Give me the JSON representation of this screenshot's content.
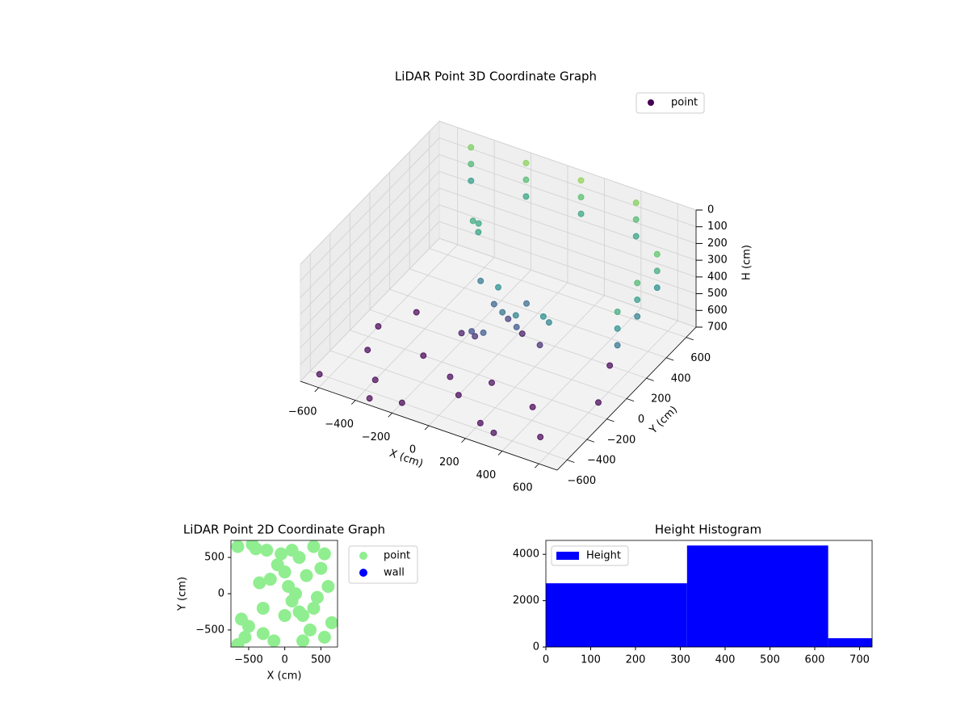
{
  "chart_data": [
    {
      "type": "scatter3d",
      "title": "LiDAR Point 3D Coordinate Graph",
      "xlabel": "X (cm)",
      "ylabel": "Y (cm)",
      "zlabel": "H (cm)",
      "xlim": [
        -700,
        700
      ],
      "ylim": [
        -700,
        700
      ],
      "zlim": [
        700,
        0
      ],
      "xticks": [
        {
          "value": -600,
          "label": "−600"
        },
        {
          "value": -400,
          "label": "−400"
        },
        {
          "value": -200,
          "label": "−200"
        },
        0,
        200,
        400,
        600
      ],
      "yticks": [
        {
          "value": -600,
          "label": "−600"
        },
        {
          "value": -400,
          "label": "−400"
        },
        {
          "value": -200,
          "label": "−200"
        },
        0,
        200,
        400,
        600
      ],
      "zticks": [
        0,
        100,
        200,
        300,
        400,
        500,
        600,
        700
      ],
      "grid": true,
      "legend": "upper right",
      "cmap": "viridis",
      "series": [
        {
          "name": "point",
          "color": "#440154",
          "x": [
            -500,
            -500,
            -500,
            -200,
            -200,
            -200,
            100,
            100,
            100,
            400,
            400,
            400,
            650,
            650,
            650,
            650,
            650,
            650,
            650,
            650,
            650,
            0,
            50,
            -50,
            100,
            0,
            -100,
            50,
            150,
            -150,
            0,
            100,
            -80,
            200,
            -200,
            -300,
            -280,
            -260,
            300,
            320,
            -650,
            -550,
            -400,
            -300,
            -500,
            -200,
            0,
            200,
            350,
            500,
            600,
            500,
            300,
            -100,
            100,
            -600,
            -350
          ],
          "y": [
            650,
            650,
            650,
            650,
            650,
            650,
            650,
            650,
            650,
            650,
            650,
            650,
            400,
            400,
            400,
            200,
            200,
            200,
            0,
            0,
            0,
            0,
            -50,
            50,
            0,
            100,
            -50,
            150,
            -100,
            100,
            -150,
            100,
            -120,
            50,
            0,
            300,
            320,
            280,
            -100,
            -80,
            -600,
            -300,
            -500,
            -200,
            100,
            -600,
            -400,
            -550,
            -300,
            -500,
            -100,
            200,
            -600,
            -300,
            -250,
            -100,
            -650
          ],
          "z": [
            50,
            150,
            250,
            30,
            130,
            230,
            20,
            120,
            220,
            40,
            140,
            240,
            100,
            200,
            300,
            150,
            250,
            350,
            200,
            300,
            400,
            300,
            400,
            450,
            500,
            550,
            600,
            650,
            350,
            380,
            480,
            420,
            520,
            600,
            650,
            200,
            220,
            240,
            300,
            340,
            700,
            700,
            700,
            700,
            700,
            700,
            700,
            700,
            700,
            700,
            700,
            700,
            690,
            690,
            680,
            700,
            700
          ]
        }
      ]
    },
    {
      "type": "scatter",
      "title": "LiDAR Point 2D Coordinate Graph",
      "xlabel": "X (cm)",
      "ylabel": "Y (cm)",
      "xlim": [
        -745,
        730
      ],
      "ylim": [
        -735,
        735
      ],
      "xticks": [
        {
          "value": -500,
          "label": "−500"
        },
        0,
        500
      ],
      "yticks": [
        {
          "value": -500,
          "label": "−500"
        },
        0,
        500
      ],
      "legend": "outside right",
      "series": [
        {
          "name": "point",
          "color": "#90ee90",
          "x": [
            -650,
            -600,
            -550,
            -400,
            -350,
            -300,
            -250,
            -150,
            -100,
            -50,
            0,
            50,
            100,
            150,
            200,
            250,
            300,
            350,
            400,
            450,
            500,
            550,
            600,
            650,
            -500,
            -450,
            -300,
            100,
            250,
            400,
            550,
            -650,
            -200,
            0,
            200
          ],
          "values": [
            650,
            -350,
            -600,
            620,
            150,
            -200,
            600,
            -650,
            400,
            550,
            300,
            100,
            -100,
            0,
            500,
            -300,
            250,
            -500,
            650,
            -50,
            350,
            -600,
            100,
            -400,
            -450,
            680,
            -550,
            600,
            -650,
            -200,
            550,
            -700,
            200,
            -300,
            -250
          ]
        },
        {
          "name": "wall",
          "color": "#0000ff",
          "x": [],
          "values": []
        }
      ]
    },
    {
      "type": "histogram",
      "title": "Height Histogram",
      "bins": [
        0,
        315,
        630,
        728
      ],
      "xlim": [
        0,
        728
      ],
      "ylim": [
        0,
        4600
      ],
      "xticks": [
        0,
        100,
        200,
        300,
        400,
        500,
        600,
        700
      ],
      "yticks": [
        0,
        2000,
        4000
      ],
      "legend": "upper left",
      "series": [
        {
          "name": "Height",
          "color": "#0000ff",
          "values": [
            2750,
            4380,
            380
          ]
        }
      ]
    }
  ]
}
